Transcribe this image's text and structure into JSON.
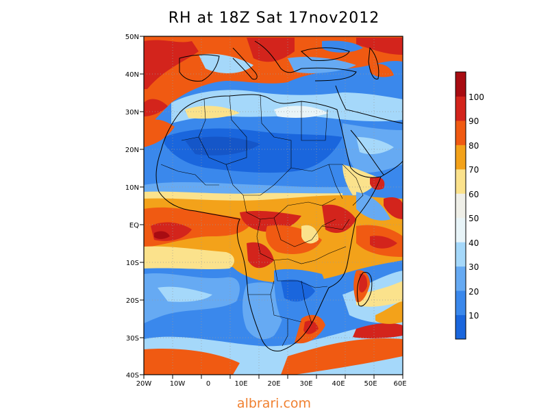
{
  "title": "RH at 18Z Sat 17nov2012",
  "lat_labels": [
    "50N",
    "40N",
    "30N",
    "20N",
    "10N",
    "EQ",
    "10S",
    "20S",
    "30S",
    "40S"
  ],
  "lon_labels": [
    "20W",
    "10W",
    "0",
    "10E",
    "20E",
    "30E",
    "40E",
    "50E",
    "60E"
  ],
  "colorbar": {
    "labels": [
      "10",
      "20",
      "30",
      "40",
      "50",
      "60",
      "70",
      "80",
      "90",
      "100"
    ],
    "colors": [
      "#1a66dd",
      "#3a88ec",
      "#66aaf3",
      "#a5d8fa",
      "#e8f4f8",
      "#efefe8",
      "#fbe28c",
      "#f3a21a",
      "#f05a12",
      "#d3241c",
      "#a80c12"
    ]
  },
  "watermark": "albrari.com"
}
